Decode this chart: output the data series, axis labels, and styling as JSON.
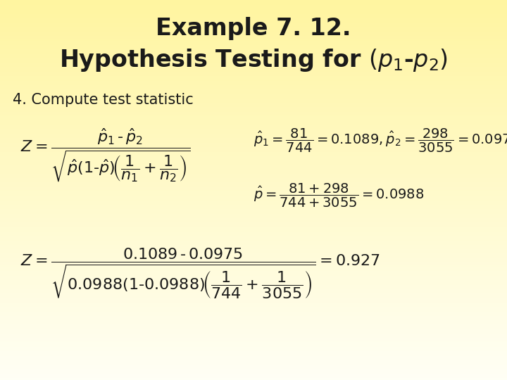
{
  "title_line1": "Example 7. 12.",
  "title_line2": "Hypothesis Testing for (p",
  "bg_color_top": "#FFF5A0",
  "bg_color_bottom": "#FFFEF0",
  "text_color": "#1a1a1a",
  "title_fontsize": 24,
  "subtitle_fontsize": 15,
  "formula_fontsize": 14,
  "fig_width": 7.2,
  "fig_height": 5.4,
  "dpi": 100
}
